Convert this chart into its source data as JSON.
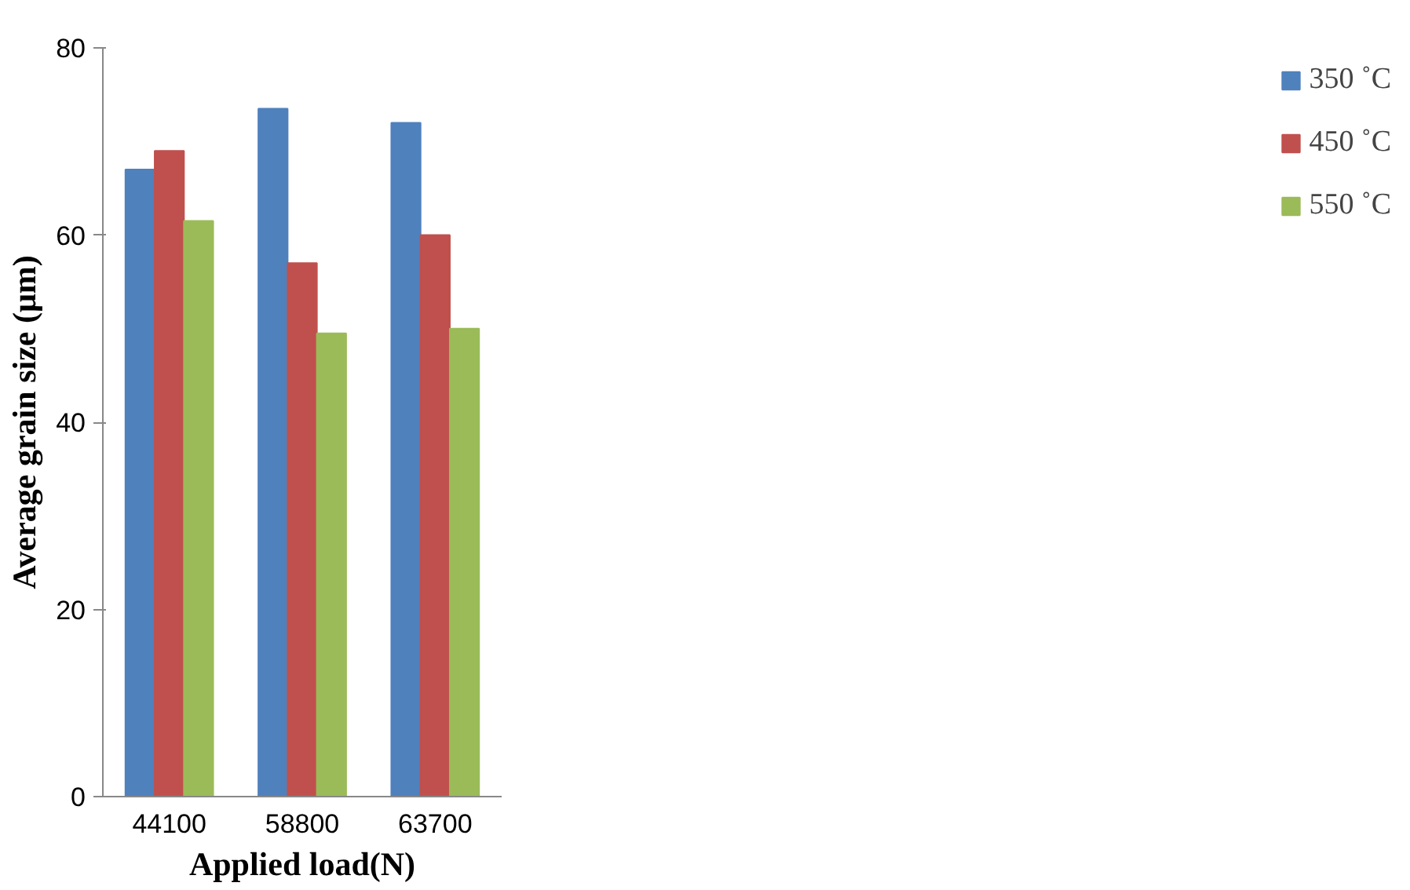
{
  "chart_data": {
    "type": "bar",
    "xlabel": "Applied load(N)",
    "ylabel": "Average grain size (μm)",
    "categories": [
      "44100",
      "58800",
      "63700"
    ],
    "series": [
      {
        "name": "350 ˚C",
        "color": "#4f81bd",
        "values": [
          67,
          73.5,
          72
        ]
      },
      {
        "name": "450 ˚C",
        "color": "#c0504d",
        "values": [
          69,
          57,
          60
        ]
      },
      {
        "name": "550 ˚C",
        "color": "#9bbb59",
        "values": [
          61.5,
          49.5,
          50
        ]
      }
    ],
    "ylim": [
      0,
      80
    ],
    "yticks": [
      0,
      20,
      40,
      60,
      80
    ],
    "grid": false,
    "legend": "right"
  }
}
